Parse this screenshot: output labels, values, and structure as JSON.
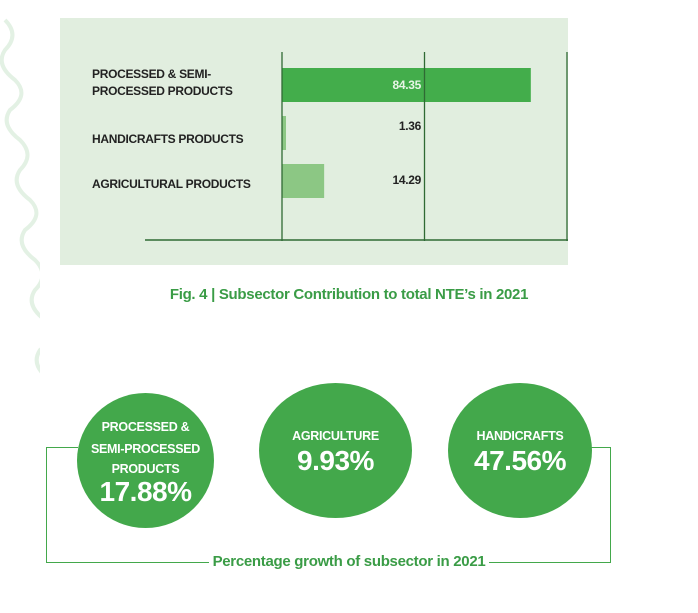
{
  "chart_data": {
    "type": "bar",
    "orientation": "horizontal",
    "categories": [
      "PROCESSED & SEMI-PROCESSED PRODUCTS",
      "HANDICRAFTS PRODUCTS",
      "AGRICULTURAL PRODUCTS"
    ],
    "category_lines": [
      [
        "PROCESSED & SEMI-",
        "PROCESSED PRODUCTS"
      ],
      [
        "HANDICRAFTS PRODUCTS"
      ],
      [
        "AGRICULTURAL PRODUCTS"
      ]
    ],
    "values": [
      84.35,
      1.36,
      14.29
    ],
    "value_labels": [
      "84.35",
      "1.36",
      "14.29"
    ],
    "colors": [
      "#43ad4b",
      "#8cc784",
      "#8cc784"
    ],
    "xlim": [
      0,
      100
    ],
    "gridlines": [
      0,
      50,
      100
    ],
    "title": "Fig. 4  | Subsector Contribution to total NTE’s in 2021",
    "background": "#e1eedf"
  },
  "growth": {
    "caption": "Percentage growth of subsector in 2021",
    "color": "#43a84b",
    "items": [
      {
        "lines": [
          "PROCESSED &",
          "SEMI-PROCESSED",
          "PRODUCTS"
        ],
        "value": "17.88%"
      },
      {
        "lines": [
          "AGRICULTURE"
        ],
        "value": "9.93%"
      },
      {
        "lines": [
          "HANDICRAFTS"
        ],
        "value": "47.56%"
      }
    ]
  }
}
